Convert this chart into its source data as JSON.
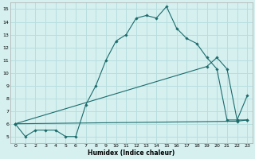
{
  "xlabel": "Humidex (Indice chaleur)",
  "bg_color": "#d6f0f0",
  "grid_color": "#b8dede",
  "line_color": "#1a6b6b",
  "xlim": [
    -0.5,
    23.5
  ],
  "ylim": [
    4.5,
    15.5
  ],
  "xticks": [
    0,
    1,
    2,
    3,
    4,
    5,
    6,
    7,
    8,
    9,
    10,
    11,
    12,
    13,
    14,
    15,
    16,
    17,
    18,
    19,
    20,
    21,
    22,
    23
  ],
  "yticks": [
    5,
    6,
    7,
    8,
    9,
    10,
    11,
    12,
    13,
    14,
    15
  ],
  "line1_x": [
    0,
    1,
    2,
    3,
    4,
    5,
    6,
    7,
    8,
    9,
    10,
    11,
    12,
    13,
    14,
    15,
    16,
    17,
    18,
    19,
    20,
    21,
    22,
    23
  ],
  "line1_y": [
    6,
    5,
    5.5,
    5.5,
    5.5,
    5,
    5,
    7.5,
    9,
    11,
    12.5,
    13,
    14.3,
    14.5,
    14.3,
    15.2,
    13.5,
    12.7,
    12.3,
    11.2,
    10.3,
    6.3,
    6.3,
    8.2
  ],
  "line2_x": [
    0,
    22,
    23
  ],
  "line2_y": [
    6,
    6.2,
    6.3
  ],
  "line3_x": [
    0,
    19,
    20,
    21,
    22,
    23
  ],
  "line3_y": [
    6,
    10.5,
    11.2,
    10.3,
    6.3,
    6.3
  ]
}
